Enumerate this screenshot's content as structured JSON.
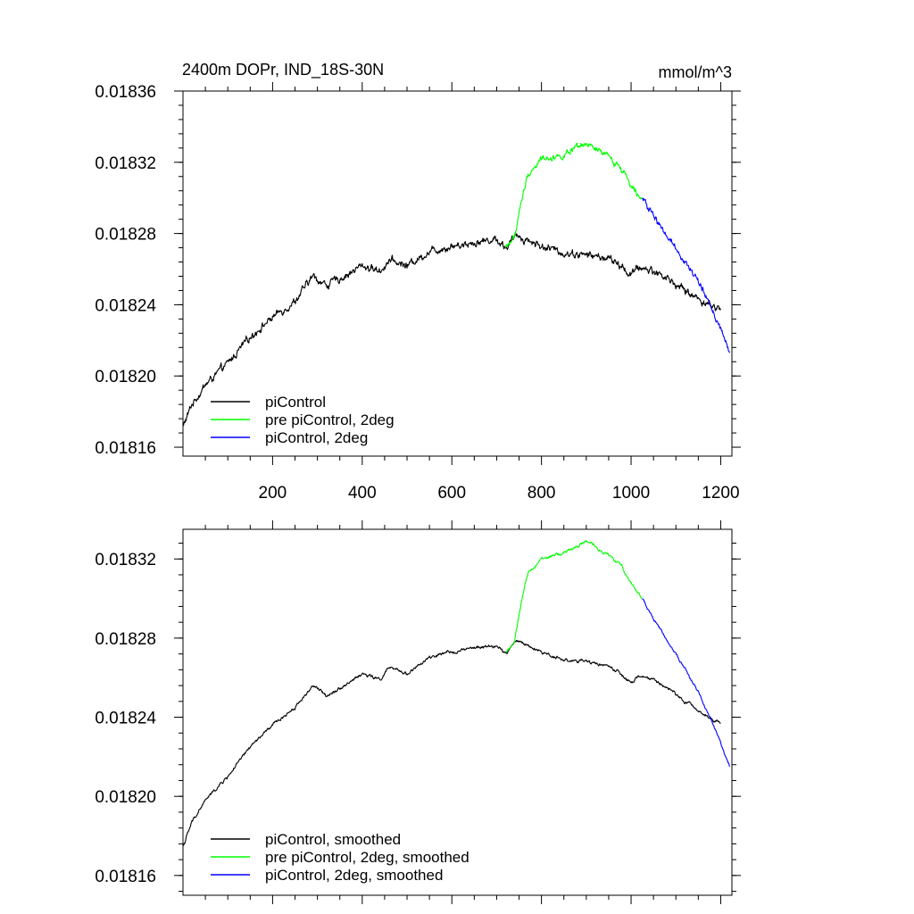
{
  "figure": {
    "title": "2400m DOPr, IND_18S-30N",
    "units": "mmol/m^3"
  },
  "chart_data": [
    {
      "type": "line",
      "panel": "top",
      "title": "2400m DOPr, IND_18S-30N",
      "units": "mmol/m^3",
      "xlabel": "",
      "ylabel": "",
      "xlim": [
        0,
        1225
      ],
      "ylim": [
        0.018155,
        0.01836
      ],
      "xticks": [
        200,
        400,
        600,
        800,
        1000,
        1200
      ],
      "xtick_labels": [
        "200",
        "400",
        "600",
        "800",
        "1000",
        "1200"
      ],
      "yticks": [
        0.01816,
        0.0182,
        0.01824,
        0.01828,
        0.01832,
        0.01836
      ],
      "ytick_labels": [
        "0.01816",
        "0.01820",
        "0.01824",
        "0.01828",
        "0.01832",
        "0.01836"
      ],
      "grid": false,
      "legend_position": "bottom-left",
      "series": [
        {
          "name": "piControl",
          "color": "#000000",
          "noise": 1.3e-06,
          "x": [
            1,
            20,
            50,
            100,
            150,
            200,
            250,
            290,
            320,
            360,
            400,
            440,
            460,
            500,
            550,
            600,
            650,
            700,
            720,
            745,
            800,
            850,
            900,
            950,
            980,
            1000,
            1020,
            1050,
            1080,
            1120,
            1160,
            1200
          ],
          "y": [
            0.018172,
            0.018184,
            0.018195,
            0.018207,
            0.018222,
            0.018233,
            0.018242,
            0.018256,
            0.018251,
            0.018256,
            0.018262,
            0.018259,
            0.018265,
            0.018262,
            0.01827,
            0.018273,
            0.018275,
            0.018277,
            0.018272,
            0.018279,
            0.018273,
            0.018269,
            0.018268,
            0.018266,
            0.018261,
            0.018257,
            0.018261,
            0.018259,
            0.018255,
            0.018248,
            0.018242,
            0.018237
          ]
        },
        {
          "name": "pre piControl, 2deg",
          "color": "#00ff00",
          "noise": 1.1e-06,
          "x": [
            720,
            740,
            755,
            770,
            800,
            850,
            900,
            950,
            980,
            1000,
            1025
          ],
          "y": [
            0.018272,
            0.018278,
            0.018298,
            0.018313,
            0.018322,
            0.018324,
            0.01833,
            0.018323,
            0.018316,
            0.018308,
            0.0183
          ],
          "legend_label": "pre piControl, 2deg"
        },
        {
          "name": "piControl, 2deg",
          "color": "#0000ff",
          "noise": 1.1e-06,
          "x": [
            1025,
            1050,
            1100,
            1150,
            1180,
            1200,
            1220
          ],
          "y": [
            0.0183,
            0.01829,
            0.018272,
            0.018253,
            0.018238,
            0.018226,
            0.018213
          ]
        }
      ]
    },
    {
      "type": "line",
      "panel": "bottom",
      "xlabel": "",
      "ylabel": "",
      "xlim": [
        0,
        1225
      ],
      "ylim": [
        0.01815,
        0.018335
      ],
      "xticks": [
        200,
        400,
        600,
        800,
        1000,
        1200
      ],
      "yticks": [
        0.01816,
        0.0182,
        0.01824,
        0.01828,
        0.01832
      ],
      "ytick_labels": [
        "0.01816",
        "0.01820",
        "0.01824",
        "0.01828",
        "0.01832"
      ],
      "grid": false,
      "legend_position": "bottom-left",
      "series": [
        {
          "name": "piControl, smoothed",
          "color": "#000000",
          "noise": 5e-07,
          "x": [
            1,
            20,
            50,
            100,
            150,
            200,
            250,
            290,
            320,
            360,
            400,
            440,
            460,
            500,
            550,
            600,
            650,
            700,
            720,
            745,
            800,
            850,
            900,
            950,
            980,
            1000,
            1020,
            1050,
            1080,
            1120,
            1160,
            1200
          ],
          "y": [
            0.018175,
            0.018187,
            0.018198,
            0.01821,
            0.018225,
            0.018236,
            0.018245,
            0.018256,
            0.018251,
            0.018256,
            0.018262,
            0.018259,
            0.018265,
            0.018262,
            0.01827,
            0.018273,
            0.018275,
            0.018276,
            0.018272,
            0.018279,
            0.018273,
            0.018269,
            0.018268,
            0.018266,
            0.018261,
            0.018257,
            0.018261,
            0.018259,
            0.018255,
            0.018248,
            0.018242,
            0.018237
          ]
        },
        {
          "name": "pre piControl, 2deg, smoothed",
          "color": "#00ff00",
          "noise": 5e-07,
          "x": [
            720,
            740,
            755,
            770,
            800,
            850,
            900,
            950,
            980,
            1000,
            1025
          ],
          "y": [
            0.018273,
            0.018278,
            0.018298,
            0.018313,
            0.01832,
            0.018323,
            0.018329,
            0.018322,
            0.018316,
            0.018308,
            0.0183
          ]
        },
        {
          "name": "piControl, 2deg, smoothed",
          "color": "#0000ff",
          "noise": 4e-07,
          "x": [
            1025,
            1050,
            1100,
            1150,
            1180,
            1200,
            1220
          ],
          "y": [
            0.0183,
            0.01829,
            0.018272,
            0.018253,
            0.018238,
            0.018227,
            0.018215
          ]
        }
      ]
    }
  ]
}
